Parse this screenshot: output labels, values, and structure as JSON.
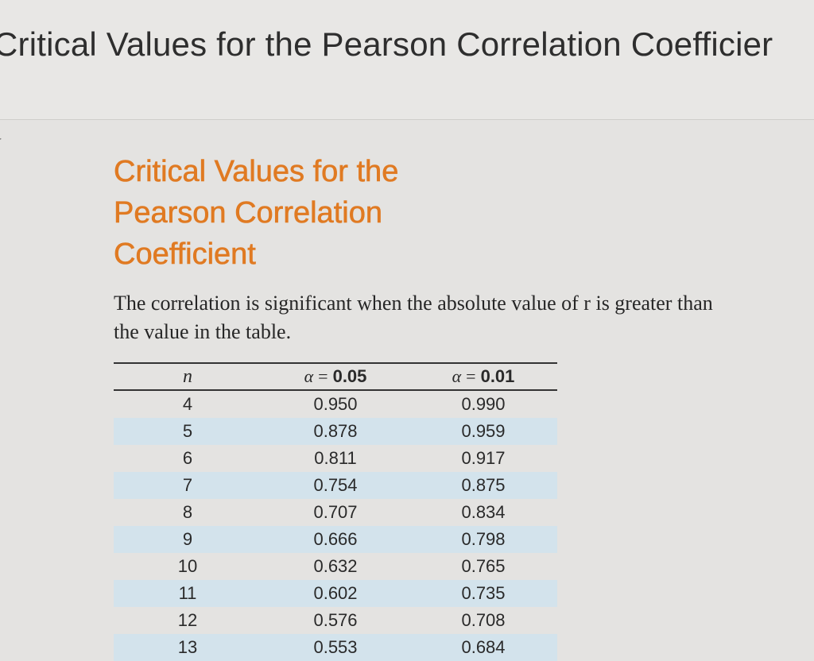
{
  "header": {
    "title": "Critical Values for the Pearson Correlation Coefficier"
  },
  "section": {
    "title_lines": [
      "Critical Values for the",
      "Pearson Correlation",
      "Coefficient"
    ],
    "description": "The correlation is significant when the absolute value of r is greater than the value in the table."
  },
  "table": {
    "columns": {
      "n": "n",
      "alpha_05_symbol": "α",
      "alpha_05_value": "0.05",
      "alpha_01_symbol": "α",
      "alpha_01_value": "0.01",
      "equals": "="
    },
    "rows": [
      {
        "n": "4",
        "a05": "0.950",
        "a01": "0.990"
      },
      {
        "n": "5",
        "a05": "0.878",
        "a01": "0.959"
      },
      {
        "n": "6",
        "a05": "0.811",
        "a01": "0.917"
      },
      {
        "n": "7",
        "a05": "0.754",
        "a01": "0.875"
      },
      {
        "n": "8",
        "a05": "0.707",
        "a01": "0.834"
      },
      {
        "n": "9",
        "a05": "0.666",
        "a01": "0.798"
      },
      {
        "n": "10",
        "a05": "0.632",
        "a01": "0.765"
      },
      {
        "n": "11",
        "a05": "0.602",
        "a01": "0.735"
      },
      {
        "n": "12",
        "a05": "0.576",
        "a01": "0.708"
      },
      {
        "n": "13",
        "a05": "0.553",
        "a01": "0.684"
      }
    ]
  },
  "colors": {
    "heading": "#e07a22",
    "row_stripe": "#d3e3ec",
    "background": "#e4e3e1"
  }
}
